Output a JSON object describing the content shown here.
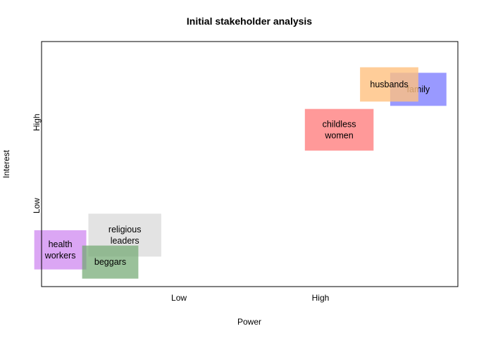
{
  "chart_data": {
    "type": "scatter",
    "title": "Initial stakeholder analysis",
    "xlabel": "Power",
    "ylabel": "Interest",
    "x_ticks": [
      {
        "label": "Low",
        "value": 0.33
      },
      {
        "label": "High",
        "value": 0.67
      }
    ],
    "y_ticks": [
      {
        "label": "Low",
        "value": 0.33
      },
      {
        "label": "High",
        "value": 0.67
      }
    ],
    "xlim": [
      0,
      1
    ],
    "ylim": [
      0,
      1
    ],
    "grid": false,
    "legend": "none",
    "stakeholders": [
      {
        "label": [
          "religious",
          "leaders"
        ],
        "power": 0.2,
        "interest": 0.21,
        "color": "#d9d9d9",
        "opacity": 0.75,
        "w": 0.175,
        "h": 0.175
      },
      {
        "label": [
          "health",
          "workers"
        ],
        "power": 0.045,
        "interest": 0.15,
        "color": "#cc80f0",
        "opacity": 0.7,
        "w": 0.125,
        "h": 0.16
      },
      {
        "label": [
          "beggars"
        ],
        "power": 0.165,
        "interest": 0.1,
        "color": "#6fa66f",
        "opacity": 0.7,
        "w": 0.135,
        "h": 0.135
      },
      {
        "label": [
          "childless",
          "women"
        ],
        "power": 0.715,
        "interest": 0.64,
        "color": "#ff7f7f",
        "opacity": 0.8,
        "w": 0.165,
        "h": 0.17
      },
      {
        "label": [
          "family"
        ],
        "power": 0.905,
        "interest": 0.805,
        "color": "#8080ff",
        "opacity": 0.8,
        "w": 0.135,
        "h": 0.135
      },
      {
        "label": [
          "husbands"
        ],
        "power": 0.835,
        "interest": 0.825,
        "color": "#ffc080",
        "opacity": 0.8,
        "w": 0.14,
        "h": 0.14
      }
    ]
  }
}
